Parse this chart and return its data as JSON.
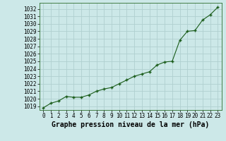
{
  "x": [
    0,
    1,
    2,
    3,
    4,
    5,
    6,
    7,
    8,
    9,
    10,
    11,
    12,
    13,
    14,
    15,
    16,
    17,
    18,
    19,
    20,
    21,
    22,
    23
  ],
  "y": [
    1018.8,
    1019.4,
    1019.7,
    1020.3,
    1020.2,
    1020.2,
    1020.5,
    1021.0,
    1021.3,
    1021.5,
    1022.0,
    1022.5,
    1023.0,
    1023.3,
    1023.6,
    1024.5,
    1024.9,
    1025.0,
    1027.8,
    1029.0,
    1029.1,
    1030.5,
    1031.2,
    1032.2
  ],
  "xlabel": "Graphe pression niveau de la mer (hPa)",
  "ylim_min": 1018.5,
  "ylim_max": 1032.8,
  "xlim_min": -0.5,
  "xlim_max": 23.5,
  "line_color": "#1a5c1a",
  "marker_color": "#1a5c1a",
  "bg_color": "#cce8e8",
  "grid_color": "#b0d0d0",
  "xlabel_fontsize": 7,
  "ytick_fontsize": 5.5,
  "xtick_fontsize": 5.5
}
